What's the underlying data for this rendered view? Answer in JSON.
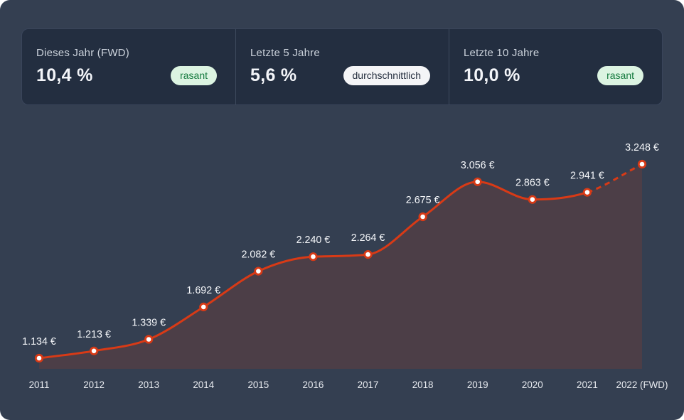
{
  "stats": {
    "cards": [
      {
        "label": "Dieses Jahr (FWD)",
        "value": "10,4 %",
        "badge": "rasant",
        "badge_style": "green"
      },
      {
        "label": "Letzte 5 Jahre",
        "value": "5,6 %",
        "badge": "durchschnittlich",
        "badge_style": "white"
      },
      {
        "label": "Letzte 10 Jahre",
        "value": "10,0 %",
        "badge": "rasant",
        "badge_style": "green"
      }
    ]
  },
  "chart_data": {
    "type": "line",
    "title": "",
    "xlabel": "",
    "ylabel": "",
    "categories": [
      "2011",
      "2012",
      "2013",
      "2014",
      "2015",
      "2016",
      "2017",
      "2018",
      "2019",
      "2020",
      "2021",
      "2022 (FWD)"
    ],
    "values": [
      1134,
      1213,
      1339,
      1692,
      2082,
      2240,
      2264,
      2675,
      3056,
      2863,
      2941,
      3248
    ],
    "value_labels": [
      "1.134 €",
      "1.213 €",
      "1.339 €",
      "1.692 €",
      "2.082 €",
      "2.240 €",
      "2.264 €",
      "2.675 €",
      "3.056 €",
      "2.863 €",
      "2.941 €",
      "3.248 €"
    ],
    "unit": "€",
    "forecast_from_index": 10,
    "forecast_style": "dashed",
    "grid": false,
    "legend": false,
    "area_filled_to_baseline": true
  },
  "colors": {
    "screen_bg": "#343F51",
    "card_bg": "#232E40",
    "card_divider": "#3E4A5E",
    "line": "#D83A16",
    "area_fill": "rgba(216,58,22,0.15)",
    "point_fill": "#FFFFFF",
    "badge_green_bg": "#DCF4E2",
    "badge_green_text": "#147A3E",
    "badge_white_bg": "#F4F5F7",
    "badge_white_text": "#242E3E"
  }
}
